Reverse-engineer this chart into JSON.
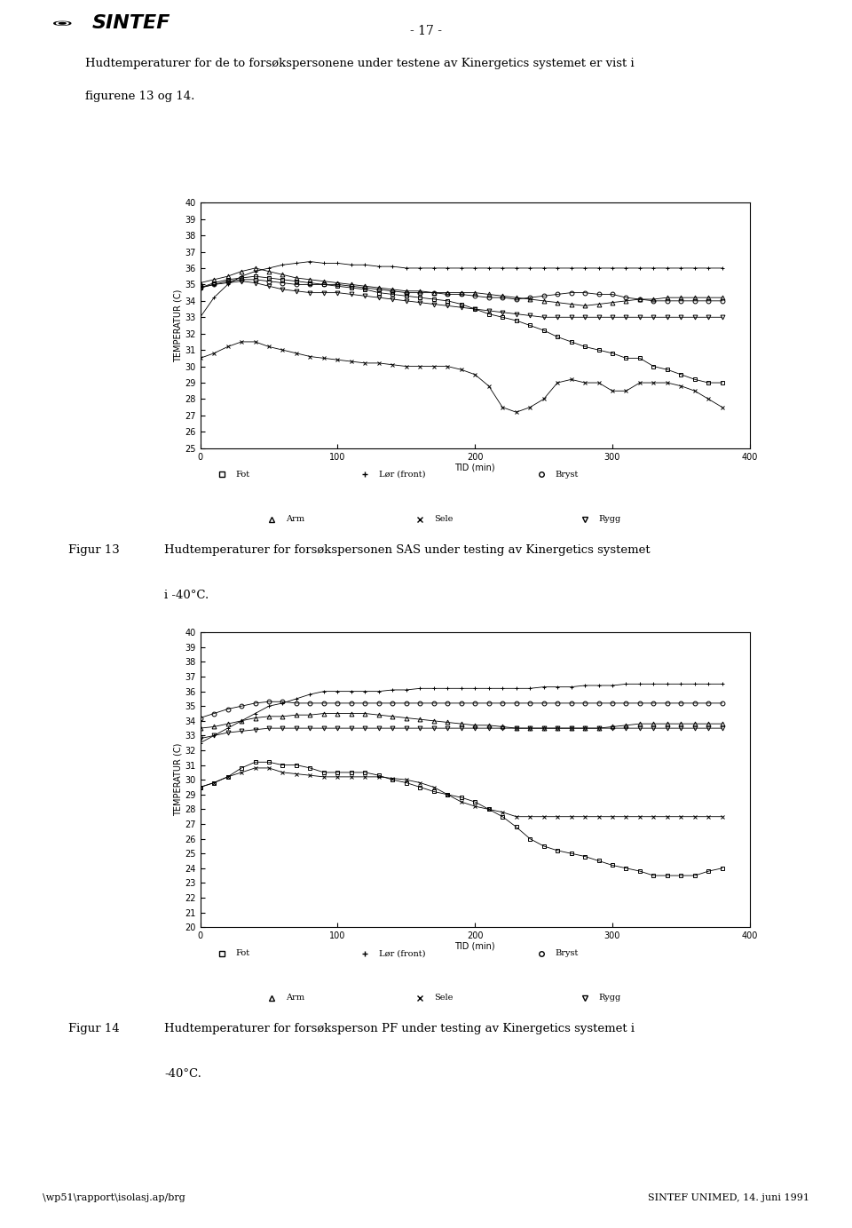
{
  "page_title": "- 17 -",
  "header_text1": "Hudtemperaturer for de to forsøkspersonene under testene av Kinergetics systemet er vist i",
  "header_text2": "figurene 13 og 14.",
  "fig13_caption1": "Figur 13",
  "fig13_caption2": "Hudtemperaturer for forsøkspersonen SAS under testing av Kinergetics systemet",
  "fig13_caption3": "i -40°C.",
  "fig14_caption1": "Figur 14",
  "fig14_caption2": "Hudtemperaturer for forsøksperson PF under testing av Kinergetics systemet i",
  "fig14_caption3": "-40°C.",
  "footer_left": "\\wp51\\rapport\\isolasj.ap/brg",
  "footer_right": "SINTEF UNIMED, 14. juni 1991",
  "ylabel": "TEMPERATUR (C)",
  "xlabel": "TID (min)",
  "chart1": {
    "ylim": [
      25,
      40
    ],
    "yticks": [
      25,
      26,
      27,
      28,
      29,
      30,
      31,
      32,
      33,
      34,
      35,
      36,
      37,
      38,
      39,
      40
    ],
    "xlim": [
      0,
      400
    ],
    "xticks": [
      0,
      100,
      200,
      300,
      400
    ],
    "series": {
      "Lar_front": {
        "x": [
          0,
          10,
          20,
          30,
          40,
          50,
          60,
          70,
          80,
          90,
          100,
          110,
          120,
          130,
          140,
          150,
          160,
          170,
          180,
          190,
          200,
          210,
          220,
          230,
          240,
          250,
          260,
          270,
          280,
          290,
          300,
          310,
          320,
          330,
          340,
          350,
          360,
          370,
          380
        ],
        "y": [
          33.0,
          34.2,
          35.0,
          35.5,
          35.8,
          36.0,
          36.2,
          36.3,
          36.4,
          36.3,
          36.3,
          36.2,
          36.2,
          36.1,
          36.1,
          36.0,
          36.0,
          36.0,
          36.0,
          36.0,
          36.0,
          36.0,
          36.0,
          36.0,
          36.0,
          36.0,
          36.0,
          36.0,
          36.0,
          36.0,
          36.0,
          36.0,
          36.0,
          36.0,
          36.0,
          36.0,
          36.0,
          36.0,
          36.0
        ],
        "marker": "+"
      },
      "Fot": {
        "x": [
          0,
          10,
          20,
          30,
          40,
          50,
          60,
          70,
          80,
          90,
          100,
          110,
          120,
          130,
          140,
          150,
          160,
          170,
          180,
          190,
          200,
          210,
          220,
          230,
          240,
          250,
          260,
          270,
          280,
          290,
          300,
          310,
          320,
          330,
          340,
          350,
          360,
          370,
          380
        ],
        "y": [
          34.8,
          35.1,
          35.3,
          35.4,
          35.5,
          35.4,
          35.3,
          35.2,
          35.1,
          35.0,
          34.9,
          34.8,
          34.7,
          34.5,
          34.4,
          34.3,
          34.2,
          34.1,
          34.0,
          33.8,
          33.5,
          33.2,
          33.0,
          32.8,
          32.5,
          32.2,
          31.8,
          31.5,
          31.2,
          31.0,
          30.8,
          30.5,
          30.5,
          30.0,
          29.8,
          29.5,
          29.2,
          29.0,
          29.0
        ],
        "marker": "s"
      },
      "Bryst": {
        "x": [
          0,
          10,
          20,
          30,
          40,
          50,
          60,
          70,
          80,
          90,
          100,
          110,
          120,
          130,
          140,
          150,
          160,
          170,
          180,
          190,
          200,
          210,
          220,
          230,
          240,
          250,
          260,
          270,
          280,
          290,
          300,
          310,
          320,
          330,
          340,
          350,
          360,
          370,
          380
        ],
        "y": [
          34.8,
          35.0,
          35.2,
          35.3,
          35.3,
          35.2,
          35.1,
          35.0,
          35.0,
          35.0,
          35.0,
          34.9,
          34.8,
          34.7,
          34.6,
          34.5,
          34.5,
          34.5,
          34.4,
          34.4,
          34.3,
          34.2,
          34.2,
          34.1,
          34.2,
          34.3,
          34.4,
          34.5,
          34.5,
          34.4,
          34.4,
          34.2,
          34.1,
          34.0,
          34.0,
          34.0,
          34.0,
          34.0,
          34.0
        ],
        "marker": "o"
      },
      "Arm": {
        "x": [
          0,
          10,
          20,
          30,
          40,
          50,
          60,
          70,
          80,
          90,
          100,
          110,
          120,
          130,
          140,
          150,
          160,
          170,
          180,
          190,
          200,
          210,
          220,
          230,
          240,
          250,
          260,
          270,
          280,
          290,
          300,
          310,
          320,
          330,
          340,
          350,
          360,
          370,
          380
        ],
        "y": [
          35.1,
          35.3,
          35.5,
          35.8,
          36.0,
          35.8,
          35.6,
          35.4,
          35.3,
          35.2,
          35.1,
          35.0,
          34.9,
          34.8,
          34.7,
          34.6,
          34.6,
          34.5,
          34.5,
          34.5,
          34.5,
          34.4,
          34.3,
          34.2,
          34.1,
          34.0,
          33.9,
          33.8,
          33.7,
          33.8,
          33.9,
          34.0,
          34.1,
          34.1,
          34.2,
          34.2,
          34.2,
          34.2,
          34.2
        ],
        "marker": "^"
      },
      "Sele": {
        "x": [
          0,
          10,
          20,
          30,
          40,
          50,
          60,
          70,
          80,
          90,
          100,
          110,
          120,
          130,
          140,
          150,
          160,
          170,
          180,
          190,
          200,
          210,
          220,
          230,
          240,
          250,
          260,
          270,
          280,
          290,
          300,
          310,
          320,
          330,
          340,
          350,
          360,
          370,
          380
        ],
        "y": [
          30.5,
          30.8,
          31.2,
          31.5,
          31.5,
          31.2,
          31.0,
          30.8,
          30.6,
          30.5,
          30.4,
          30.3,
          30.2,
          30.2,
          30.1,
          30.0,
          30.0,
          30.0,
          30.0,
          29.8,
          29.5,
          28.8,
          27.5,
          27.2,
          27.5,
          28.0,
          29.0,
          29.2,
          29.0,
          29.0,
          28.5,
          28.5,
          29.0,
          29.0,
          29.0,
          28.8,
          28.5,
          28.0,
          27.5
        ],
        "marker": "x"
      },
      "Rygg": {
        "x": [
          0,
          10,
          20,
          30,
          40,
          50,
          60,
          70,
          80,
          90,
          100,
          110,
          120,
          130,
          140,
          150,
          160,
          170,
          180,
          190,
          200,
          210,
          220,
          230,
          240,
          250,
          260,
          270,
          280,
          290,
          300,
          310,
          320,
          330,
          340,
          350,
          360,
          370,
          380
        ],
        "y": [
          34.8,
          35.0,
          35.1,
          35.2,
          35.1,
          34.9,
          34.7,
          34.6,
          34.5,
          34.5,
          34.5,
          34.4,
          34.3,
          34.2,
          34.1,
          34.0,
          33.9,
          33.8,
          33.7,
          33.6,
          33.5,
          33.4,
          33.3,
          33.2,
          33.1,
          33.0,
          33.0,
          33.0,
          33.0,
          33.0,
          33.0,
          33.0,
          33.0,
          33.0,
          33.0,
          33.0,
          33.0,
          33.0,
          33.0
        ],
        "marker": "v"
      }
    }
  },
  "chart2": {
    "ylim": [
      20,
      40
    ],
    "yticks": [
      20,
      21,
      22,
      23,
      24,
      25,
      26,
      27,
      28,
      29,
      30,
      31,
      32,
      33,
      34,
      35,
      36,
      37,
      38,
      39,
      40
    ],
    "xlim": [
      0,
      400
    ],
    "xticks": [
      0,
      100,
      200,
      300,
      400
    ],
    "series": {
      "Lar_front": {
        "x": [
          0,
          10,
          20,
          30,
          40,
          50,
          60,
          70,
          80,
          90,
          100,
          110,
          120,
          130,
          140,
          150,
          160,
          170,
          180,
          190,
          200,
          210,
          220,
          230,
          240,
          250,
          260,
          270,
          280,
          290,
          300,
          310,
          320,
          330,
          340,
          350,
          360,
          370,
          380
        ],
        "y": [
          32.5,
          33.0,
          33.5,
          34.0,
          34.5,
          35.0,
          35.2,
          35.5,
          35.8,
          36.0,
          36.0,
          36.0,
          36.0,
          36.0,
          36.1,
          36.1,
          36.2,
          36.2,
          36.2,
          36.2,
          36.2,
          36.2,
          36.2,
          36.2,
          36.2,
          36.3,
          36.3,
          36.3,
          36.4,
          36.4,
          36.4,
          36.5,
          36.5,
          36.5,
          36.5,
          36.5,
          36.5,
          36.5,
          36.5
        ],
        "marker": "+"
      },
      "Fot": {
        "x": [
          0,
          10,
          20,
          30,
          40,
          50,
          60,
          70,
          80,
          90,
          100,
          110,
          120,
          130,
          140,
          150,
          160,
          170,
          180,
          190,
          200,
          210,
          220,
          230,
          240,
          250,
          260,
          270,
          280,
          290,
          300,
          310,
          320,
          330,
          340,
          350,
          360,
          370,
          380
        ],
        "y": [
          29.5,
          29.8,
          30.2,
          30.8,
          31.2,
          31.2,
          31.0,
          31.0,
          30.8,
          30.5,
          30.5,
          30.5,
          30.5,
          30.3,
          30.0,
          29.8,
          29.5,
          29.2,
          29.0,
          28.8,
          28.5,
          28.0,
          27.5,
          26.8,
          26.0,
          25.5,
          25.2,
          25.0,
          24.8,
          24.5,
          24.2,
          24.0,
          23.8,
          23.5,
          23.5,
          23.5,
          23.5,
          23.8,
          24.0
        ],
        "marker": "s"
      },
      "Bryst": {
        "x": [
          0,
          10,
          20,
          30,
          40,
          50,
          60,
          70,
          80,
          90,
          100,
          110,
          120,
          130,
          140,
          150,
          160,
          170,
          180,
          190,
          200,
          210,
          220,
          230,
          240,
          250,
          260,
          270,
          280,
          290,
          300,
          310,
          320,
          330,
          340,
          350,
          360,
          370,
          380
        ],
        "y": [
          34.2,
          34.5,
          34.8,
          35.0,
          35.2,
          35.3,
          35.3,
          35.2,
          35.2,
          35.2,
          35.2,
          35.2,
          35.2,
          35.2,
          35.2,
          35.2,
          35.2,
          35.2,
          35.2,
          35.2,
          35.2,
          35.2,
          35.2,
          35.2,
          35.2,
          35.2,
          35.2,
          35.2,
          35.2,
          35.2,
          35.2,
          35.2,
          35.2,
          35.2,
          35.2,
          35.2,
          35.2,
          35.2,
          35.2
        ],
        "marker": "o"
      },
      "Arm": {
        "x": [
          0,
          10,
          20,
          30,
          40,
          50,
          60,
          70,
          80,
          90,
          100,
          110,
          120,
          130,
          140,
          150,
          160,
          170,
          180,
          190,
          200,
          210,
          220,
          230,
          240,
          250,
          260,
          270,
          280,
          290,
          300,
          310,
          320,
          330,
          340,
          350,
          360,
          370,
          380
        ],
        "y": [
          33.5,
          33.6,
          33.8,
          34.0,
          34.2,
          34.3,
          34.3,
          34.4,
          34.4,
          34.5,
          34.5,
          34.5,
          34.5,
          34.4,
          34.3,
          34.2,
          34.1,
          34.0,
          33.9,
          33.8,
          33.7,
          33.7,
          33.6,
          33.5,
          33.5,
          33.5,
          33.5,
          33.5,
          33.5,
          33.5,
          33.6,
          33.7,
          33.8,
          33.8,
          33.8,
          33.8,
          33.8,
          33.8,
          33.8
        ],
        "marker": "^"
      },
      "Sele": {
        "x": [
          0,
          10,
          20,
          30,
          40,
          50,
          60,
          70,
          80,
          90,
          100,
          110,
          120,
          130,
          140,
          150,
          160,
          170,
          180,
          190,
          200,
          210,
          220,
          230,
          240,
          250,
          260,
          270,
          280,
          290,
          300,
          310,
          320,
          330,
          340,
          350,
          360,
          370,
          380
        ],
        "y": [
          29.5,
          29.8,
          30.2,
          30.5,
          30.8,
          30.8,
          30.5,
          30.4,
          30.3,
          30.2,
          30.2,
          30.2,
          30.2,
          30.2,
          30.1,
          30.0,
          29.8,
          29.5,
          29.0,
          28.5,
          28.2,
          28.0,
          27.8,
          27.5,
          27.5,
          27.5,
          27.5,
          27.5,
          27.5,
          27.5,
          27.5,
          27.5,
          27.5,
          27.5,
          27.5,
          27.5,
          27.5,
          27.5,
          27.5
        ],
        "marker": "x"
      },
      "Rygg": {
        "x": [
          0,
          10,
          20,
          30,
          40,
          50,
          60,
          70,
          80,
          90,
          100,
          110,
          120,
          130,
          140,
          150,
          160,
          170,
          180,
          190,
          200,
          210,
          220,
          230,
          240,
          250,
          260,
          270,
          280,
          290,
          300,
          310,
          320,
          330,
          340,
          350,
          360,
          370,
          380
        ],
        "y": [
          32.8,
          33.0,
          33.2,
          33.3,
          33.4,
          33.5,
          33.5,
          33.5,
          33.5,
          33.5,
          33.5,
          33.5,
          33.5,
          33.5,
          33.5,
          33.5,
          33.5,
          33.5,
          33.5,
          33.5,
          33.5,
          33.5,
          33.5,
          33.5,
          33.5,
          33.5,
          33.5,
          33.5,
          33.5,
          33.5,
          33.5,
          33.5,
          33.5,
          33.5,
          33.5,
          33.5,
          33.5,
          33.5,
          33.5
        ],
        "marker": "v"
      }
    }
  }
}
